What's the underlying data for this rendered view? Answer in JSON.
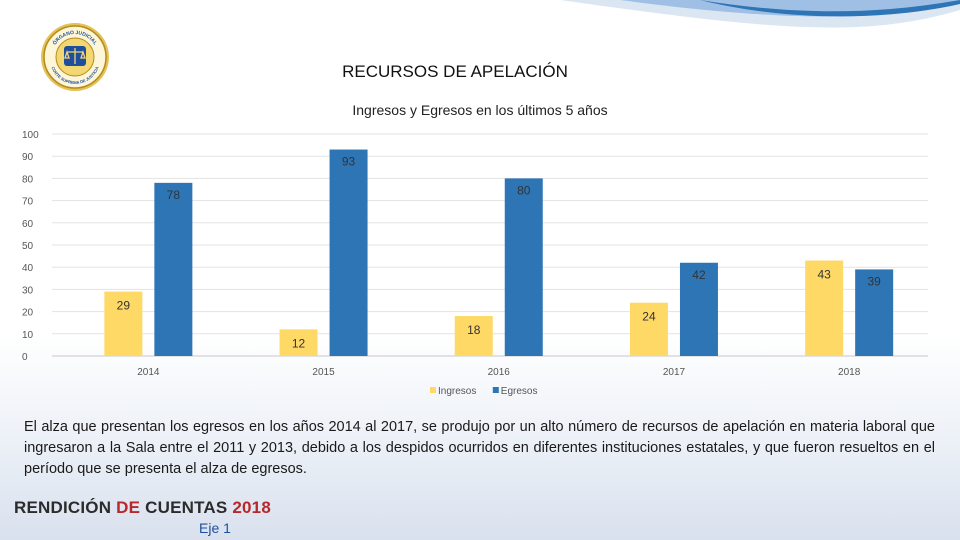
{
  "logo": {
    "text_top": "ÓRGANO JUDICIAL",
    "text_bottom": "CORTE SUPREMA DE JUSTICIA",
    "colors": {
      "ring": "#c9a227",
      "inner": "#1f4e9c"
    }
  },
  "header": {
    "title": "RECURSOS DE APELACIÓN"
  },
  "chart_data": {
    "type": "bar",
    "title": "Ingresos y Egresos  en los últimos 5 años",
    "categories": [
      "2014",
      "2015",
      "2016",
      "2017",
      "2018"
    ],
    "series": [
      {
        "name": "Ingresos",
        "values": [
          29,
          12,
          18,
          24,
          43
        ],
        "color": "#ffd966"
      },
      {
        "name": "Egresos",
        "values": [
          78,
          93,
          80,
          42,
          39
        ],
        "color": "#2e75b6"
      }
    ],
    "ylim": [
      0,
      100
    ],
    "yticks": [
      0,
      10,
      20,
      30,
      40,
      50,
      60,
      70,
      80,
      90,
      100
    ],
    "grid": true,
    "legend": "bottom"
  },
  "description": "El alza que presentan los egresos en los años 2014 al 2017, se produjo por un alto número de recursos de apelación en materia laboral que ingresaron a la Sala entre el 2011 y 2013, debido a los despidos ocurridos en diferentes instituciones estatales, y que fueron resueltos en el período que se presenta el alza de egresos.",
  "footer": {
    "brand_word1": "RENDICIÓN",
    "brand_word2": "DE",
    "brand_word3": "CUENTAS",
    "brand_year": "2018",
    "section": "Eje 1"
  }
}
